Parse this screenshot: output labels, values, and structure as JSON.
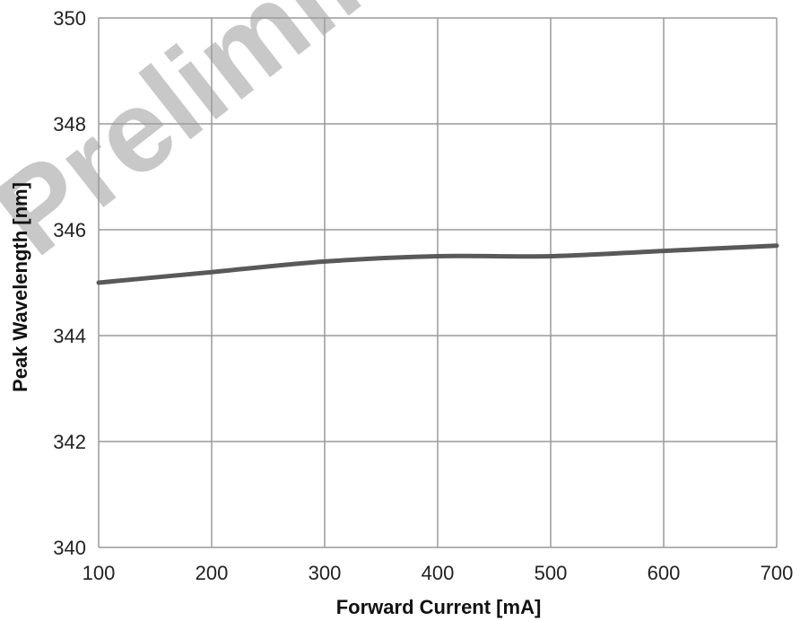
{
  "watermark": "Preliminary",
  "colors": {
    "line": "#595959",
    "grid": "#9a9a9a",
    "watermark": "#c8c8c8"
  },
  "chart_data": {
    "type": "line",
    "title": "",
    "xlabel": "Forward Current [mA]",
    "ylabel": "Peak Wavelength [nm]",
    "xlim": [
      100,
      700
    ],
    "ylim": [
      340,
      350
    ],
    "x_ticks": [
      100,
      200,
      300,
      400,
      500,
      600,
      700
    ],
    "y_ticks": [
      340,
      342,
      344,
      346,
      348,
      350
    ],
    "grid": true,
    "series": [
      {
        "x": [
          100,
          200,
          300,
          400,
          500,
          600,
          700
        ],
        "y": [
          345.0,
          345.2,
          345.4,
          345.5,
          345.5,
          345.6,
          345.7
        ]
      }
    ]
  }
}
